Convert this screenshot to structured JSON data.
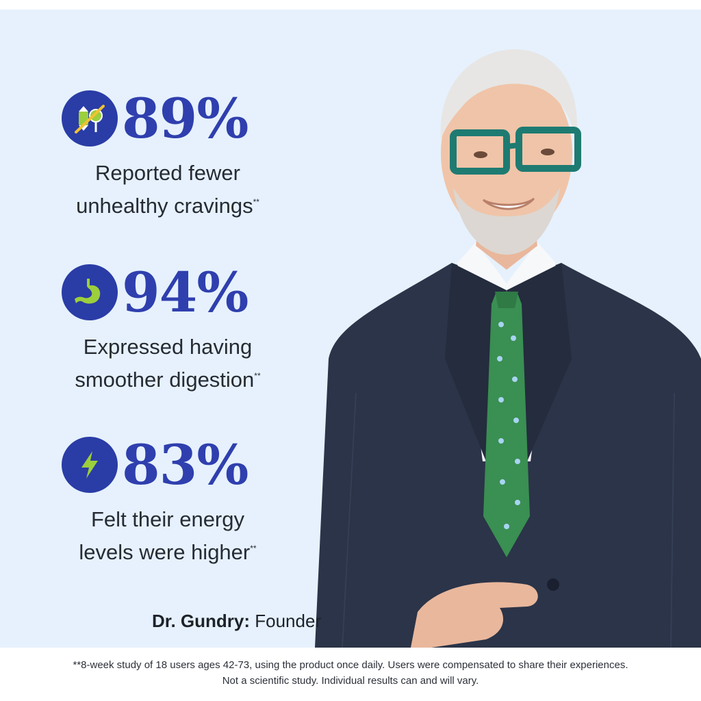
{
  "stats": [
    {
      "percent": "89%",
      "line1": "Reported fewer",
      "line2": "unhealthy cravings",
      "mark": "**",
      "icon": "candy-lollipop-icon"
    },
    {
      "percent": "94%",
      "line1": "Expressed having",
      "line2": "smoother digestion",
      "mark": "**",
      "icon": "stomach-icon"
    },
    {
      "percent": "83%",
      "line1": "Felt their energy",
      "line2": "levels were higher",
      "mark": "**",
      "icon": "lightning-bolt-icon"
    }
  ],
  "founder": {
    "name": "Dr. Gundry:",
    "role": " Founder"
  },
  "footnote": {
    "line1": "**8-week study of 18 users ages 42-73, using the product once daily. Users were compensated to share their experiences.",
    "line2": "Not a scientific study. Individual results can and will vary."
  },
  "colors": {
    "panel_bg": "#e6f1fd",
    "accent_blue": "#2f3fae",
    "icon_circle": "#2a3ca6",
    "icon_green": "#9ccf3c",
    "suit": "#2b3448",
    "tie_green": "#3a8f52",
    "glasses": "#1e7b72"
  }
}
